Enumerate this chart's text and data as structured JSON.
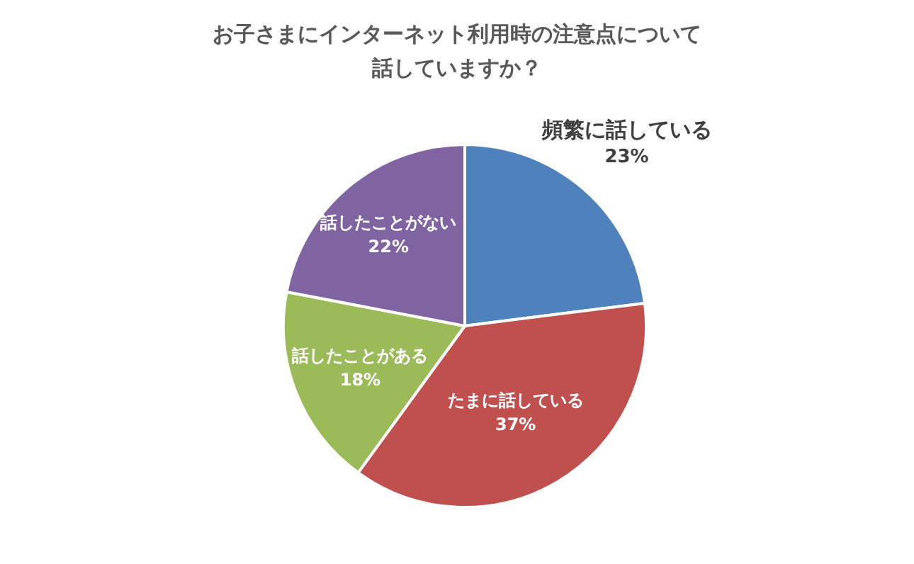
{
  "chart_data": {
    "type": "pie",
    "title": "お子さまにインターネット利用時の注意点について話していますか？",
    "categories": [
      "頻繁に話している",
      "たまに話している",
      "話したことがある",
      "話したことがない"
    ],
    "values": [
      23,
      37,
      18,
      22
    ],
    "value_labels": [
      "23%",
      "37%",
      "18%",
      "22%"
    ],
    "colors": [
      "#4f81bd",
      "#c0504d",
      "#9bbb59",
      "#8064a2"
    ],
    "legend": false
  }
}
